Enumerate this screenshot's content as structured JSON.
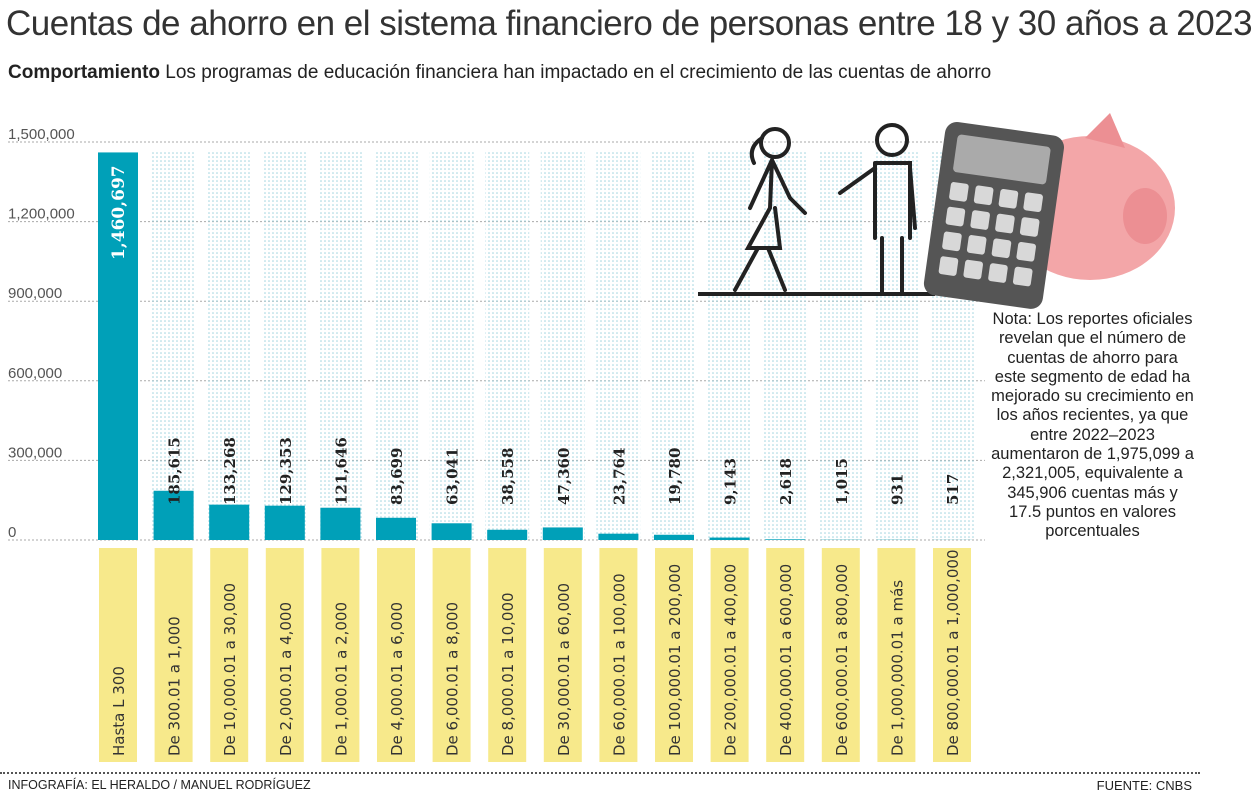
{
  "title": "Cuentas de ahorro en el sistema financiero de personas entre 18 y 30 años a 2023",
  "subtitle_bold": "Comportamiento",
  "subtitle_text": "Los programas de educación financiera han impactado en el crecimiento de las cuentas de ahorro",
  "note": "Nota: Los reportes oficiales revelan que el número de cuentas de ahorro para este segmento de edad ha mejorado su crecimiento en los años recientes, ya que entre 2022–2023 aumentaron de 1,975,099 a 2,321,005, equivalente a 345,906 cuentas más y 17.5 puntos en valores porcentuales",
  "credit": "INFOGRAFÍA: EL HERALDO / MANUEL RODRÍGUEZ",
  "source": "FUENTE: CNBS",
  "colors": {
    "bar": "#00a0b8",
    "label_bg": "#f7e98b",
    "grid_dots": "#9fd3de"
  },
  "illustration_icons": [
    "woman-walking-icon",
    "man-pointing-icon",
    "calculator-icon",
    "piggy-bank-icon"
  ],
  "chart_data": {
    "type": "bar",
    "title": "",
    "ylim": [
      0,
      1500000
    ],
    "yticks": [
      "0",
      "300,000",
      "600,000",
      "900,000",
      "1,200,000",
      "1,500,000"
    ],
    "ytick_values": [
      0,
      300000,
      600000,
      900000,
      1200000,
      1500000
    ],
    "grid": true,
    "categories": [
      "Hasta L 300",
      "De 300.01 a 1,000",
      "De 10,000.01 a 30,000",
      "De 2,000.01 a 4,000",
      "De 1,000.01 a 2,000",
      "De 4,000.01 a 6,000",
      "De 6,000.01 a 8,000",
      "De 8,000.01 a 10,000",
      "De 30,000.01 a 60,000",
      "De 60,000.01 a 100,000",
      "De 100,000.01 a 200,000",
      "De 200,000.01 a 400,000",
      "De 400,000.01 a 600,000",
      "De 600,000.01 a 800,000",
      "De 1,000,000.01 a más",
      "De 800,000.01 a 1,000,000"
    ],
    "values": [
      1460697,
      185615,
      133268,
      129353,
      121646,
      83699,
      63041,
      38558,
      47360,
      23764,
      19780,
      9143,
      2618,
      1015,
      931,
      517
    ],
    "value_labels": [
      "1,460,697",
      "185,615",
      "133,268",
      "129,353",
      "121,646",
      "83,699",
      "63,041",
      "38,558",
      "47,360",
      "23,764",
      "19,780",
      "9,143",
      "2,618",
      "1,015",
      "931",
      "517"
    ]
  }
}
